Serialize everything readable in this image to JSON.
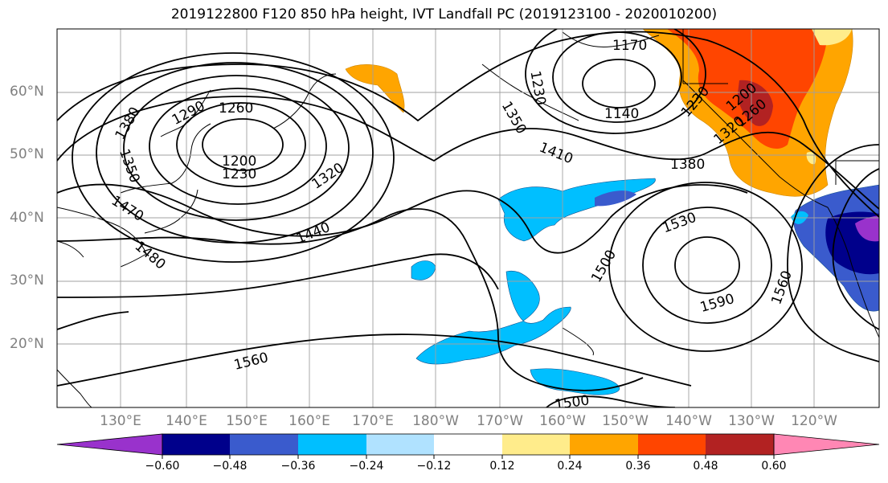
{
  "title": "2019122800 F120 850 hPa height, IVT Landfall PC (2019123100 - 2020010200)",
  "lat_labels": [
    "60°N",
    "50°N",
    "40°N",
    "30°N",
    "20°N"
  ],
  "lon_labels": [
    "130°E",
    "140°E",
    "150°E",
    "160°E",
    "170°E",
    "180°W",
    "170°W",
    "160°W",
    "150°W",
    "140°W",
    "130°W",
    "120°W"
  ],
  "contour_labels": [
    "1170",
    "1140",
    "1260",
    "1290",
    "1200",
    "1230",
    "1320",
    "1380",
    "1350",
    "1410",
    "1380",
    "1440",
    "1470",
    "1480",
    "1500",
    "1530",
    "1560",
    "1590",
    "1560",
    "1500",
    "1350",
    "1230",
    "1230",
    "1200",
    "1320",
    "1260"
  ],
  "colorbar": {
    "ticks": [
      "−0.60",
      "−0.48",
      "−0.36",
      "−0.24",
      "−0.12",
      "0.12",
      "0.24",
      "0.36",
      "0.48",
      "0.60"
    ],
    "colors": [
      "#9932cc",
      "#00008b",
      "#3a5bcd",
      "#00bfff",
      "#b0e2ff",
      "#ffffff",
      "#ffec8b",
      "#ffa500",
      "#ff4500",
      "#b22222",
      "#ff87b4"
    ]
  }
}
